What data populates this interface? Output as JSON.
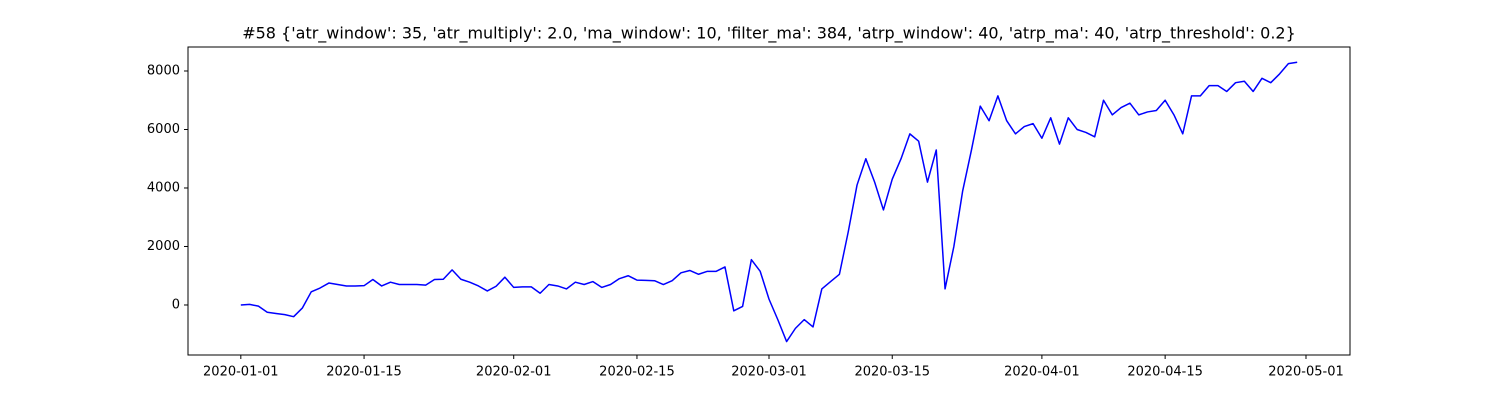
{
  "chart_data": {
    "type": "line",
    "title": "#58 {'atr_window': 35, 'atr_multiply': 2.0, 'ma_window': 10, 'filter_ma': 384, 'atrp_window': 40, 'atrp_ma': 40, 'atrp_threshold': 0.2}",
    "x": [
      "2020-01-01",
      "2020-01-02",
      "2020-01-03",
      "2020-01-04",
      "2020-01-05",
      "2020-01-06",
      "2020-01-07",
      "2020-01-08",
      "2020-01-09",
      "2020-01-10",
      "2020-01-11",
      "2020-01-12",
      "2020-01-13",
      "2020-01-14",
      "2020-01-15",
      "2020-01-16",
      "2020-01-17",
      "2020-01-18",
      "2020-01-19",
      "2020-01-20",
      "2020-01-21",
      "2020-01-22",
      "2020-01-23",
      "2020-01-24",
      "2020-01-25",
      "2020-01-26",
      "2020-01-27",
      "2020-01-28",
      "2020-01-29",
      "2020-01-30",
      "2020-01-31",
      "2020-02-01",
      "2020-02-02",
      "2020-02-03",
      "2020-02-04",
      "2020-02-05",
      "2020-02-06",
      "2020-02-07",
      "2020-02-08",
      "2020-02-09",
      "2020-02-10",
      "2020-02-11",
      "2020-02-12",
      "2020-02-13",
      "2020-02-14",
      "2020-02-15",
      "2020-02-16",
      "2020-02-17",
      "2020-02-18",
      "2020-02-19",
      "2020-02-20",
      "2020-02-21",
      "2020-02-22",
      "2020-02-23",
      "2020-02-24",
      "2020-02-25",
      "2020-02-26",
      "2020-02-27",
      "2020-02-28",
      "2020-02-29",
      "2020-03-01",
      "2020-03-02",
      "2020-03-03",
      "2020-03-04",
      "2020-03-05",
      "2020-03-06",
      "2020-03-07",
      "2020-03-08",
      "2020-03-09",
      "2020-03-10",
      "2020-03-11",
      "2020-03-12",
      "2020-03-13",
      "2020-03-14",
      "2020-03-15",
      "2020-03-16",
      "2020-03-17",
      "2020-03-18",
      "2020-03-19",
      "2020-03-20",
      "2020-03-21",
      "2020-03-22",
      "2020-03-23",
      "2020-03-24",
      "2020-03-25",
      "2020-03-26",
      "2020-03-27",
      "2020-03-28",
      "2020-03-29",
      "2020-03-30",
      "2020-03-31",
      "2020-04-01",
      "2020-04-02",
      "2020-04-03",
      "2020-04-04",
      "2020-04-05",
      "2020-04-06",
      "2020-04-07",
      "2020-04-08",
      "2020-04-09",
      "2020-04-10",
      "2020-04-11",
      "2020-04-12",
      "2020-04-13",
      "2020-04-14",
      "2020-04-15",
      "2020-04-16",
      "2020-04-17",
      "2020-04-18",
      "2020-04-19",
      "2020-04-20",
      "2020-04-21",
      "2020-04-22",
      "2020-04-23",
      "2020-04-24",
      "2020-04-25",
      "2020-04-26",
      "2020-04-27",
      "2020-04-28",
      "2020-04-29",
      "2020-04-30"
    ],
    "values": [
      0,
      20,
      -40,
      -250,
      -290,
      -330,
      -400,
      -100,
      450,
      580,
      750,
      700,
      650,
      650,
      660,
      870,
      650,
      780,
      700,
      700,
      700,
      680,
      870,
      880,
      1200,
      880,
      780,
      650,
      480,
      640,
      950,
      600,
      620,
      620,
      400,
      700,
      650,
      550,
      780,
      700,
      800,
      600,
      700,
      900,
      1000,
      850,
      840,
      830,
      700,
      830,
      1100,
      1180,
      1050,
      1150,
      1150,
      1300,
      -200,
      -50,
      1550,
      1150,
      200,
      -500,
      -1250,
      -800,
      -500,
      -750,
      550,
      800,
      1050,
      2500,
      4100,
      5000,
      4200,
      3250,
      4300,
      5000,
      5850,
      5600,
      4200,
      5300,
      550,
      2000,
      3900,
      5300,
      6800,
      6300,
      7150,
      6300,
      5850,
      6100,
      6200,
      5700,
      6400,
      5500,
      6400,
      6000,
      5900,
      5750,
      7000,
      6500,
      6750,
      6900,
      6500,
      6600,
      6650,
      7000,
      6500,
      5850,
      7150,
      7150,
      7500,
      7500,
      7300,
      7600,
      7650,
      7300,
      7750,
      7600,
      7900,
      8250,
      8300
    ],
    "color": "#0000ff",
    "xlim": [
      "2019-12-26",
      "2020-05-06"
    ],
    "xticks": [
      "2020-01-01",
      "2020-01-15",
      "2020-02-01",
      "2020-02-15",
      "2020-03-01",
      "2020-03-15",
      "2020-04-01",
      "2020-04-15",
      "2020-05-01"
    ],
    "ylim": [
      -1710,
      8820
    ],
    "yticks": [
      0,
      2000,
      4000,
      6000,
      8000
    ],
    "grid": false
  }
}
